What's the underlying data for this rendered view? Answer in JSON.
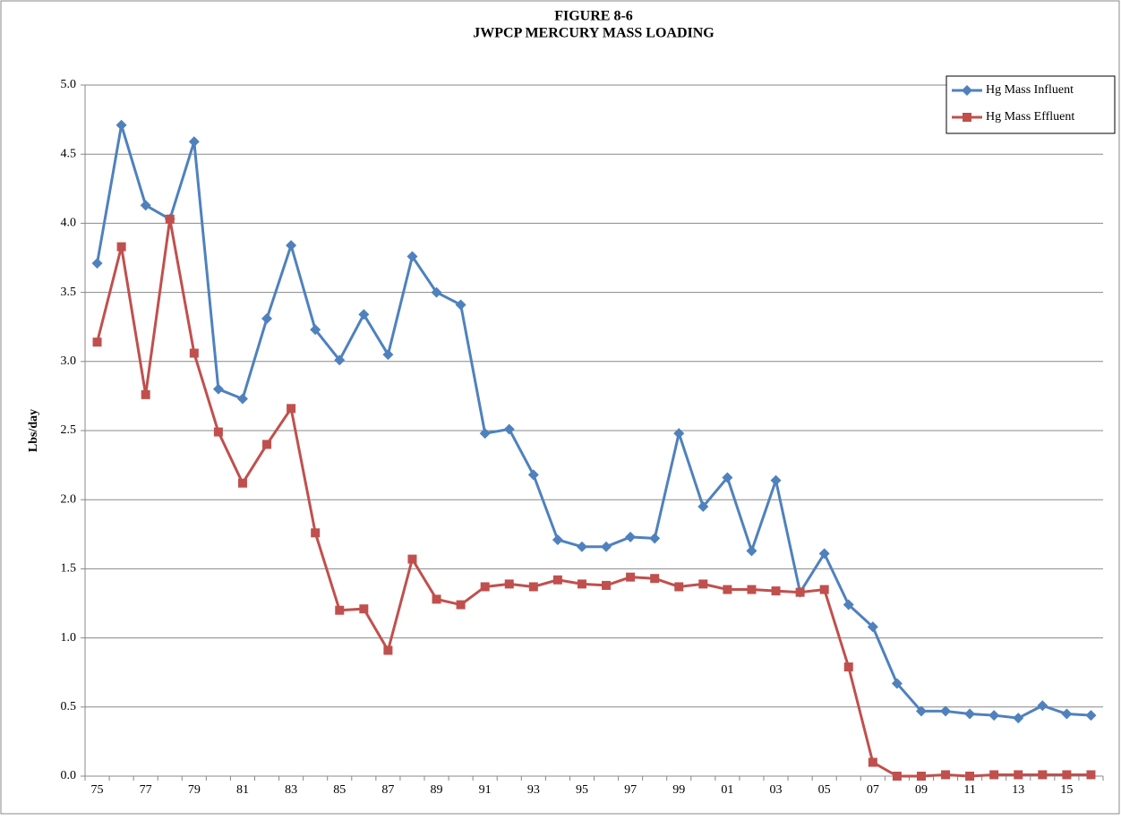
{
  "chart_data": {
    "type": "line",
    "title": [
      "FIGURE 8-6",
      "JWPCP MERCURY MASS LOADING"
    ],
    "y_label": "Lbs/day",
    "categories": [
      "75",
      null,
      "77",
      null,
      "79",
      null,
      "81",
      null,
      "83",
      null,
      "85",
      null,
      "87",
      null,
      "89",
      null,
      "91",
      null,
      "93",
      null,
      "95",
      null,
      "97",
      null,
      "99",
      null,
      "01",
      null,
      "03",
      null,
      "05",
      null,
      "07",
      null,
      "09",
      null,
      "11",
      null,
      "13",
      null,
      "15",
      null
    ],
    "series": [
      {
        "name": "Hg Mass Influent",
        "color": "#4f81bd",
        "marker": "diamond",
        "values": [
          3.71,
          4.71,
          4.13,
          4.03,
          4.59,
          2.8,
          2.73,
          3.31,
          3.84,
          3.23,
          3.01,
          3.34,
          3.05,
          3.76,
          3.5,
          3.41,
          2.48,
          2.51,
          2.18,
          1.71,
          1.66,
          1.66,
          1.73,
          1.72,
          2.48,
          1.95,
          2.16,
          1.63,
          2.14,
          1.33,
          1.61,
          1.24,
          1.08,
          0.67,
          0.47,
          0.47,
          0.45,
          0.44,
          0.42,
          0.51,
          0.45,
          0.44
        ]
      },
      {
        "name": "Hg Mass Effluent",
        "color": "#c0504d",
        "marker": "square",
        "values": [
          3.14,
          3.83,
          2.76,
          4.03,
          3.06,
          2.49,
          2.12,
          2.4,
          2.66,
          1.76,
          1.2,
          1.21,
          0.91,
          1.57,
          1.28,
          1.24,
          1.37,
          1.39,
          1.37,
          1.42,
          1.39,
          1.38,
          1.44,
          1.43,
          1.37,
          1.39,
          1.35,
          1.35,
          1.34,
          1.33,
          1.35,
          0.79,
          0.1,
          0.0,
          0.0,
          0.01,
          0.0,
          0.01,
          0.01,
          0.01,
          0.01,
          0.01
        ]
      }
    ],
    "ylim": [
      0,
      5
    ],
    "yticks": [
      {
        "value": 0,
        "label": "0.0"
      },
      0.5,
      {
        "value": 1,
        "label": "1.0"
      },
      1.5,
      {
        "value": 2,
        "label": "2.0"
      },
      2.5,
      {
        "value": 3,
        "label": "3.0"
      },
      3.5,
      {
        "value": 4,
        "label": "4.0"
      },
      4.5,
      {
        "value": 5,
        "label": "5.0"
      }
    ],
    "grid": true,
    "legend": "top-right"
  }
}
